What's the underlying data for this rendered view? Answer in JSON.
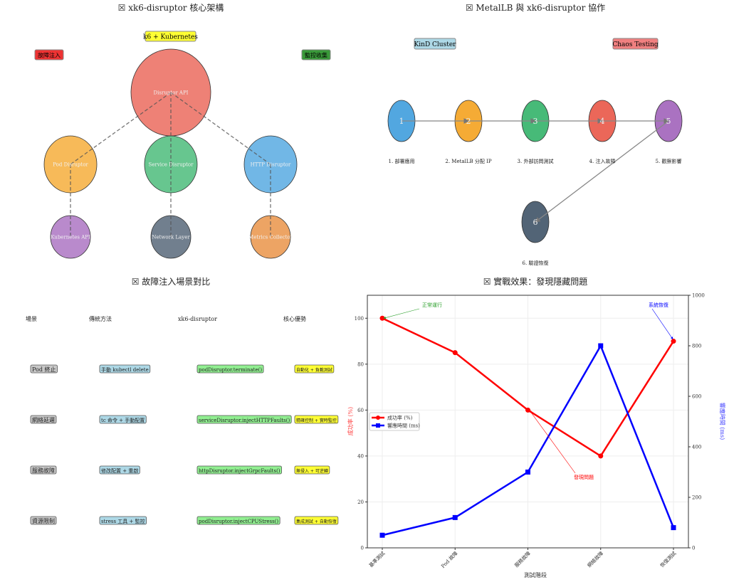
{
  "panels": {
    "architecture": {
      "title": "☒ xk6-disruptor 核心架構",
      "tags": {
        "top": "k6 + Kubernetes",
        "left": "故障注入",
        "right": "監控收集"
      },
      "nodes": [
        {
          "label": "Disruptor API",
          "color": "#e74c3c"
        },
        {
          "label": "Pod Disruptor",
          "color": "#f39c12"
        },
        {
          "label": "Service Disruptor",
          "color": "#27ae60"
        },
        {
          "label": "HTTP Disruptor",
          "color": "#3498db"
        },
        {
          "label": "Kubernetes API",
          "color": "#9b59b6"
        },
        {
          "label": "Network Layer",
          "color": "#34495e"
        },
        {
          "label": "Metrics Collector",
          "color": "#e67e22"
        }
      ]
    },
    "workflow": {
      "title": "☒ MetalLB 與 xk6-disruptor 協作",
      "tags": {
        "left": "KinD Cluster",
        "right": "Chaos Testing"
      },
      "steps": [
        {
          "num": "1",
          "label": "1. 部署應用",
          "color": "#3498db"
        },
        {
          "num": "2",
          "label": "2. MetalLB 分配 IP",
          "color": "#f39c12"
        },
        {
          "num": "3",
          "label": "3. 外部訪問測試",
          "color": "#27ae60"
        },
        {
          "num": "4",
          "label": "4. 注入故障",
          "color": "#e74c3c"
        },
        {
          "num": "5",
          "label": "5. 觀察影響",
          "color": "#9b59b6"
        },
        {
          "num": "6",
          "label": "6. 驗證恢復",
          "color": "#34495e"
        }
      ]
    },
    "comparison": {
      "title": "☒ 故障注入場景對比",
      "headers": [
        "場景",
        "傳統方法",
        "xk6-disruptor",
        "核心優勢"
      ],
      "rows": [
        [
          "Pod 終止",
          "手動 kubectl delete",
          "podDisruptor.terminate()",
          "自動化 + 負載測試"
        ],
        [
          "網絡延遲",
          "tc 命令 + 手動配置",
          "serviceDisruptor.injectHTTPFaults()",
          "精確控制 + 實時監控"
        ],
        [
          "服務故障",
          "修改配置 + 重啟",
          "httpDisruptor.injectGrpcFaults()",
          "無侵入 + 可逆轉"
        ],
        [
          "資源限制",
          "stress 工具 + 監控",
          "podDisruptor.injectCPUStress()",
          "集成測試 + 自動恢復"
        ]
      ]
    }
  },
  "chart_data": {
    "type": "line",
    "title": "☒ 實戰效果：發現隱藏問題",
    "categories": [
      "基準測試",
      "Pod 故障",
      "服務故障",
      "網絡故障",
      "恢復測試"
    ],
    "xlabel": "測試階段",
    "ylabel": "成功率 (%)",
    "ylabel_right": "響應時間 (ms)",
    "ylim": [
      0,
      110
    ],
    "ylim_right": [
      0,
      1000
    ],
    "yticks": [
      0,
      20,
      40,
      60,
      80,
      100
    ],
    "yticks_right": [
      0,
      200,
      400,
      600,
      800,
      1000
    ],
    "grid": true,
    "legend_position": "center-left",
    "series": [
      {
        "name": "成功率 (%)",
        "axis": "left",
        "color": "#ff0000",
        "marker": "circle",
        "values": [
          100,
          85,
          60,
          40,
          90
        ]
      },
      {
        "name": "響應時間 (ms)",
        "axis": "right",
        "color": "#0000ff",
        "marker": "square",
        "values": [
          50,
          120,
          300,
          800,
          80
        ]
      }
    ],
    "annotations": [
      {
        "text": "正常運行",
        "target_index": 0,
        "series": 0,
        "color": "#2ca02c"
      },
      {
        "text": "發現問題",
        "target_index": 2,
        "series": 0,
        "color": "#ff0000"
      },
      {
        "text": "系統恢復",
        "target_index": 4,
        "series": 0,
        "color": "#0000ff"
      }
    ]
  }
}
